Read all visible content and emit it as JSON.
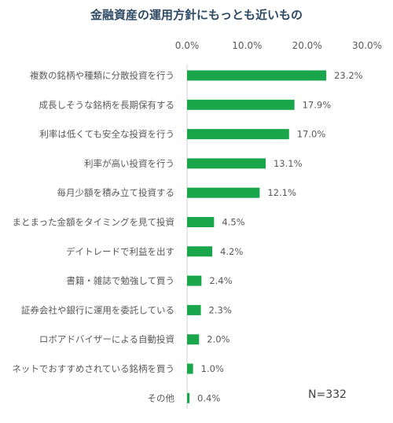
{
  "chart_data": {
    "type": "bar",
    "orientation": "horizontal",
    "title": "金融資産の運用方針にもっとも近いもの",
    "categories": [
      "複数の銘柄や種類に分散投資を行う",
      "成長しそうな銘柄を長期保有する",
      "利率は低くても安全な投資を行う",
      "利率が高い投資を行う",
      "毎月少額を積み立て投資する",
      "まとまった金額をタイミングを見て投資",
      "デイトレードで利益を出す",
      "書籍・雑誌で勉強して買う",
      "証券会社や銀行に運用を委託している",
      "ロボアドバイザーによる自動投資",
      "ネットでおすすめされている銘柄を買う",
      "その他"
    ],
    "values": [
      23.2,
      17.9,
      17.0,
      13.1,
      12.1,
      4.5,
      4.2,
      2.4,
      2.3,
      2.0,
      1.0,
      0.4
    ],
    "value_labels": [
      "23.2%",
      "17.9%",
      "17.0%",
      "13.1%",
      "12.1%",
      "4.5%",
      "4.2%",
      "2.4%",
      "2.3%",
      "2.0%",
      "1.0%",
      "0.4%"
    ],
    "xlim": [
      0,
      30
    ],
    "x_ticks": [
      "0.0%",
      "10.0%",
      "20.0%",
      "30.0%"
    ],
    "x_tick_values": [
      0,
      10,
      20,
      30
    ],
    "axis_position": "top",
    "grid": false,
    "legend": "none",
    "bar_color": "#1aa64a",
    "annotation": "N=332"
  }
}
